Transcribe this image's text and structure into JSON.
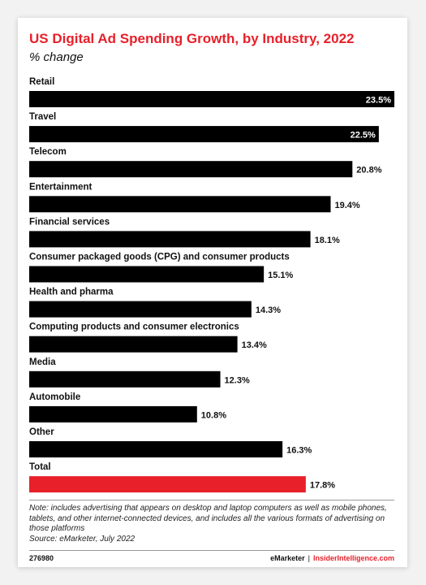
{
  "header": {
    "title": "US Digital Ad Spending Growth, by Industry, 2022",
    "subtitle": "% change"
  },
  "chart_data": {
    "type": "bar",
    "orientation": "horizontal",
    "title": "US Digital Ad Spending Growth, by Industry, 2022",
    "subtitle": "% change",
    "categories": [
      "Retail",
      "Travel",
      "Telecom",
      "Entertainment",
      "Financial services",
      "Consumer packaged goods (CPG) and consumer products",
      "Health and pharma",
      "Computing products and consumer electronics",
      "Media",
      "Automobile",
      "Other",
      "Total"
    ],
    "values": [
      23.5,
      22.5,
      20.8,
      19.4,
      18.1,
      15.1,
      14.3,
      13.4,
      12.3,
      10.8,
      16.3,
      17.8
    ],
    "value_labels": [
      "23.5%",
      "22.5%",
      "20.8%",
      "19.4%",
      "18.1%",
      "15.1%",
      "14.3%",
      "13.4%",
      "12.3%",
      "10.8%",
      "16.3%",
      "17.8%"
    ],
    "xlim": [
      0,
      23.5
    ],
    "grid": false,
    "legend": "none",
    "colors": {
      "bar": "#000000",
      "highlight": "#e8202a",
      "highlight_category": "Total"
    }
  },
  "footnote": {
    "note": "Note: includes advertising that appears on desktop and laptop computers as well as mobile phones, tablets, and other internet-connected devices, and includes all the various formats of advertising on those platforms",
    "source": "Source: eMarketer, July 2022"
  },
  "footer": {
    "chart_id": "276980",
    "brand_left": "eMarketer",
    "separator": "|",
    "brand_right": "InsiderIntelligence.com"
  }
}
